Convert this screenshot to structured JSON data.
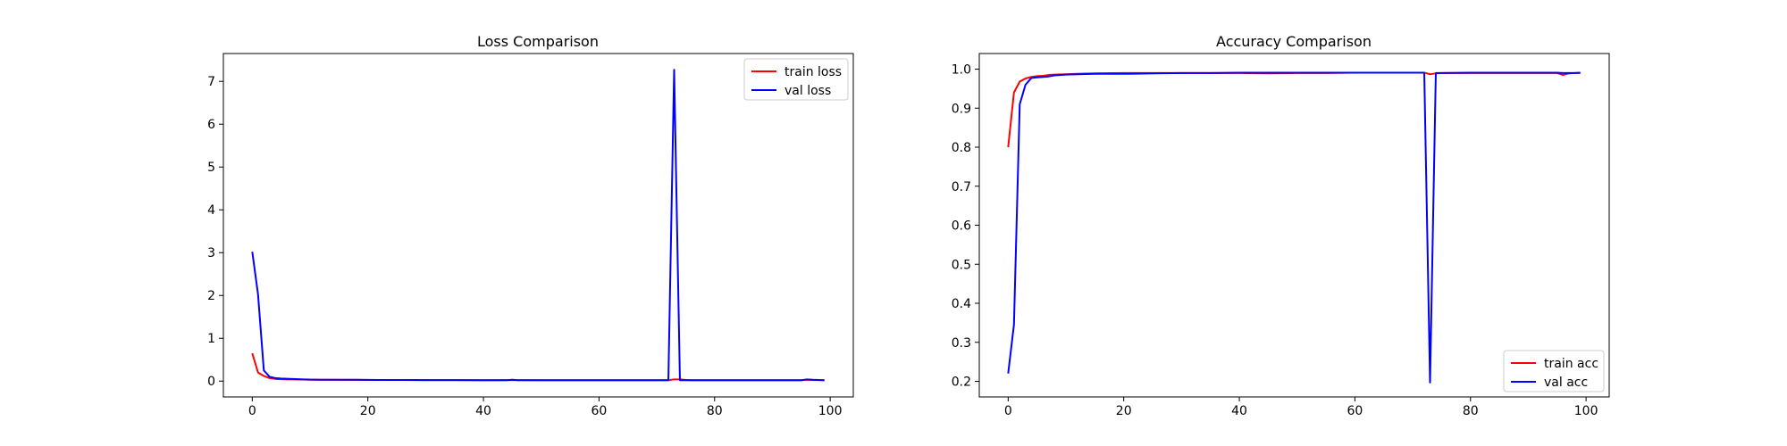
{
  "chart_data": [
    {
      "type": "line",
      "title": "Loss Comparison",
      "xlabel": "",
      "ylabel": "",
      "xlim": [
        -5,
        104
      ],
      "ylim": [
        -0.37,
        7.65
      ],
      "xticks": [
        0,
        20,
        40,
        60,
        80,
        100
      ],
      "yticks": [
        0,
        1,
        2,
        3,
        4,
        5,
        6,
        7
      ],
      "ytick_format": "int",
      "grid": false,
      "legend_position": "top-right",
      "series": [
        {
          "name": "train loss",
          "color": "#ff0000",
          "x": [
            0,
            1,
            2,
            3,
            4,
            5,
            6,
            7,
            8,
            9,
            10,
            12,
            14,
            16,
            18,
            20,
            22,
            24,
            26,
            28,
            30,
            35,
            40,
            45,
            50,
            55,
            60,
            65,
            70,
            71,
            72,
            73,
            74,
            75,
            76,
            80,
            85,
            90,
            95,
            96,
            97,
            98,
            99
          ],
          "y": [
            0.65,
            0.2,
            0.12,
            0.07,
            0.05,
            0.045,
            0.04,
            0.04,
            0.035,
            0.035,
            0.03,
            0.03,
            0.03,
            0.028,
            0.028,
            0.027,
            0.026,
            0.025,
            0.025,
            0.024,
            0.023,
            0.022,
            0.021,
            0.022,
            0.02,
            0.02,
            0.02,
            0.02,
            0.02,
            0.02,
            0.02,
            0.04,
            0.04,
            0.025,
            0.02,
            0.02,
            0.02,
            0.02,
            0.02,
            0.03,
            0.025,
            0.022,
            0.02
          ]
        },
        {
          "name": "val loss",
          "color": "#0000ff",
          "x": [
            0,
            1,
            2,
            3,
            4,
            5,
            6,
            7,
            8,
            9,
            10,
            12,
            14,
            16,
            18,
            20,
            22,
            24,
            26,
            28,
            30,
            35,
            40,
            44,
            45,
            46,
            50,
            55,
            60,
            65,
            70,
            71,
            72,
            73,
            74,
            75,
            76,
            80,
            85,
            90,
            95,
            96,
            97,
            98,
            99
          ],
          "y": [
            3.02,
            2.02,
            0.25,
            0.1,
            0.07,
            0.06,
            0.055,
            0.05,
            0.045,
            0.04,
            0.035,
            0.032,
            0.03,
            0.03,
            0.03,
            0.028,
            0.026,
            0.025,
            0.025,
            0.025,
            0.024,
            0.022,
            0.02,
            0.02,
            0.03,
            0.02,
            0.02,
            0.02,
            0.02,
            0.02,
            0.02,
            0.02,
            0.02,
            7.27,
            0.02,
            0.02,
            0.02,
            0.02,
            0.02,
            0.02,
            0.02,
            0.04,
            0.03,
            0.025,
            0.02
          ]
        }
      ]
    },
    {
      "type": "line",
      "title": "Accuracy Comparison",
      "xlabel": "",
      "ylabel": "",
      "xlim": [
        -5,
        104
      ],
      "ylim": [
        0.16,
        1.04
      ],
      "xticks": [
        0,
        20,
        40,
        60,
        80,
        100
      ],
      "yticks": [
        0.2,
        0.3,
        0.4,
        0.5,
        0.6,
        0.7,
        0.8,
        0.9,
        1.0
      ],
      "ytick_format": "fixed1",
      "grid": false,
      "legend_position": "bottom-right",
      "series": [
        {
          "name": "train acc",
          "color": "#ff0000",
          "x": [
            0,
            1,
            2,
            3,
            4,
            5,
            6,
            7,
            8,
            10,
            12,
            15,
            20,
            25,
            30,
            35,
            40,
            45,
            50,
            55,
            60,
            65,
            70,
            72,
            73,
            74,
            75,
            80,
            85,
            90,
            95,
            96,
            97,
            98,
            99
          ],
          "y": [
            0.8,
            0.94,
            0.968,
            0.976,
            0.98,
            0.982,
            0.983,
            0.985,
            0.986,
            0.987,
            0.988,
            0.989,
            0.99,
            0.99,
            0.99,
            0.99,
            0.99,
            0.989,
            0.99,
            0.99,
            0.991,
            0.991,
            0.991,
            0.991,
            0.987,
            0.989,
            0.99,
            0.99,
            0.99,
            0.99,
            0.99,
            0.985,
            0.989,
            0.99,
            0.99
          ]
        },
        {
          "name": "val acc",
          "color": "#0000ff",
          "x": [
            0,
            1,
            2,
            3,
            4,
            5,
            6,
            7,
            8,
            10,
            12,
            15,
            20,
            25,
            30,
            35,
            40,
            45,
            50,
            55,
            60,
            65,
            70,
            71,
            72,
            73,
            74,
            75,
            80,
            85,
            90,
            95,
            96,
            97,
            98,
            99
          ],
          "y": [
            0.22,
            0.345,
            0.91,
            0.96,
            0.977,
            0.979,
            0.98,
            0.981,
            0.984,
            0.986,
            0.987,
            0.988,
            0.988,
            0.989,
            0.99,
            0.99,
            0.991,
            0.991,
            0.991,
            0.991,
            0.991,
            0.991,
            0.991,
            0.991,
            0.991,
            0.197,
            0.99,
            0.99,
            0.991,
            0.991,
            0.991,
            0.991,
            0.99,
            0.99,
            0.99,
            0.991
          ]
        }
      ]
    }
  ]
}
